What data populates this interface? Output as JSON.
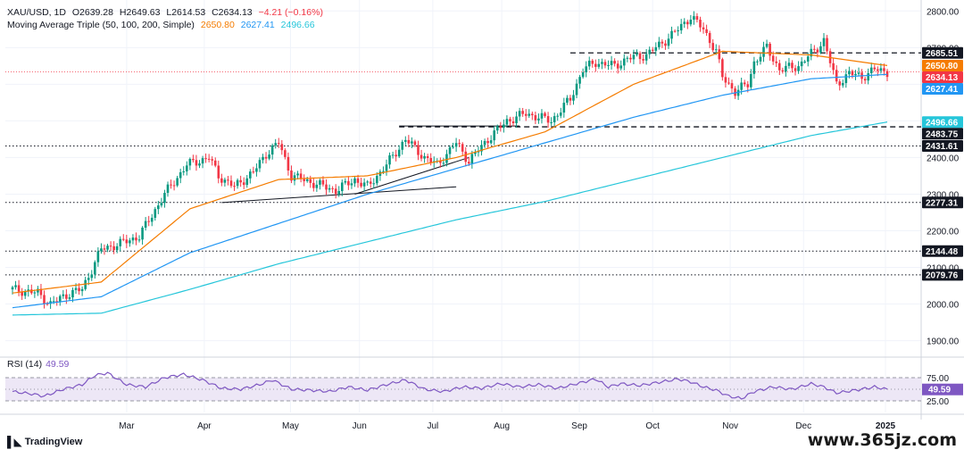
{
  "header": {
    "symbol": "XAU/USD, 1D",
    "open": "O2639.28",
    "high": "H2649.63",
    "low": "L2614.53",
    "close": "C2634.13",
    "change": "−4.21 (−0.16%)",
    "indicator_name": "Moving Average Triple (50, 100, 200, Simple)",
    "ma_values": [
      "2650.80",
      "2627.41",
      "2496.66"
    ]
  },
  "colors": {
    "up": "#089981",
    "down": "#f23645",
    "ma50": "#f57c00",
    "ma100": "#2196f3",
    "ma200": "#26c6da",
    "rsi": "#7e57c2",
    "rsi_band": "#ede7f6"
  },
  "rsi": {
    "label": "RSI (14)",
    "value": "49.59",
    "levels": [
      "75.00",
      "25.00"
    ]
  },
  "branding": {
    "logo": "TradingView",
    "watermark": "www.365jz.com"
  },
  "chart_data": {
    "type": "candlestick",
    "title": "XAU/USD, 1D",
    "x_labels": [
      "Mar",
      "Apr",
      "May",
      "Jun",
      "Jul",
      "Aug",
      "Sep",
      "Oct",
      "Nov",
      "Dec",
      "2025"
    ],
    "y_ticks": [
      1900,
      2000,
      2100,
      2200,
      2300,
      2400,
      2500,
      2600,
      2700,
      2800
    ],
    "ylim": [
      1860,
      2830
    ],
    "grid": true,
    "legend_position": "top-left",
    "horizontal_levels": [
      {
        "value": 2685.51,
        "style": "dashed",
        "label": "2685.51"
      },
      {
        "value": 2483.75,
        "style": "dashed",
        "label": "2483.75"
      },
      {
        "value": 2431.61,
        "style": "dotted",
        "label": "2431.61"
      },
      {
        "value": 2277.31,
        "style": "dotted",
        "label": "2277.31"
      },
      {
        "value": 2144.48,
        "style": "dotted",
        "label": "2144.48"
      },
      {
        "value": 2079.76,
        "style": "dotted",
        "label": "2079.76"
      }
    ],
    "price_badges": [
      {
        "value": 2685.51,
        "label": "2685.51",
        "kind": "level"
      },
      {
        "value": 2650.8,
        "label": "2650.80",
        "kind": "ma50"
      },
      {
        "value": 2634.13,
        "label": "2634.13",
        "kind": "close"
      },
      {
        "value": 2627.41,
        "label": "2627.41",
        "kind": "ma100"
      },
      {
        "value": 2496.66,
        "label": "2496.66",
        "kind": "ma200"
      },
      {
        "value": 2483.75,
        "label": "2483.75",
        "kind": "level"
      },
      {
        "value": 2431.61,
        "label": "2431.61",
        "kind": "level"
      },
      {
        "value": 2277.31,
        "label": "2277.31",
        "kind": "level"
      },
      {
        "value": 2144.48,
        "label": "2144.48",
        "kind": "level"
      },
      {
        "value": 2079.76,
        "label": "2079.76",
        "kind": "level"
      }
    ],
    "close_anchors": [
      [
        0,
        2040
      ],
      [
        8,
        2030
      ],
      [
        12,
        2000
      ],
      [
        18,
        2030
      ],
      [
        22,
        2040
      ],
      [
        28,
        2150
      ],
      [
        34,
        2165
      ],
      [
        40,
        2185
      ],
      [
        48,
        2300
      ],
      [
        55,
        2380
      ],
      [
        62,
        2400
      ],
      [
        65,
        2350
      ],
      [
        70,
        2320
      ],
      [
        76,
        2360
      ],
      [
        80,
        2410
      ],
      [
        84,
        2440
      ],
      [
        88,
        2350
      ],
      [
        95,
        2330
      ],
      [
        102,
        2310
      ],
      [
        108,
        2340
      ],
      [
        112,
        2320
      ],
      [
        118,
        2380
      ],
      [
        124,
        2450
      ],
      [
        130,
        2400
      ],
      [
        134,
        2380
      ],
      [
        140,
        2440
      ],
      [
        144,
        2390
      ],
      [
        150,
        2450
      ],
      [
        156,
        2500
      ],
      [
        162,
        2520
      ],
      [
        170,
        2500
      ],
      [
        176,
        2560
      ],
      [
        180,
        2640
      ],
      [
        184,
        2660
      ],
      [
        190,
        2650
      ],
      [
        194,
        2670
      ],
      [
        200,
        2680
      ],
      [
        206,
        2720
      ],
      [
        210,
        2750
      ],
      [
        214,
        2785
      ],
      [
        218,
        2750
      ],
      [
        222,
        2690
      ],
      [
        224,
        2620
      ],
      [
        228,
        2580
      ],
      [
        232,
        2600
      ],
      [
        234,
        2660
      ],
      [
        238,
        2700
      ],
      [
        242,
        2640
      ],
      [
        248,
        2650
      ],
      [
        254,
        2700
      ],
      [
        256,
        2720
      ],
      [
        260,
        2600
      ],
      [
        264,
        2630
      ],
      [
        268,
        2620
      ],
      [
        272,
        2640
      ],
      [
        276,
        2634
      ]
    ],
    "ma50": [
      [
        0,
        2030
      ],
      [
        28,
        2060
      ],
      [
        56,
        2260
      ],
      [
        84,
        2340
      ],
      [
        112,
        2350
      ],
      [
        140,
        2400
      ],
      [
        168,
        2470
      ],
      [
        196,
        2600
      ],
      [
        224,
        2690
      ],
      [
        252,
        2680
      ],
      [
        276,
        2651
      ]
    ],
    "ma100": [
      [
        0,
        1990
      ],
      [
        28,
        2020
      ],
      [
        56,
        2140
      ],
      [
        84,
        2220
      ],
      [
        112,
        2300
      ],
      [
        140,
        2370
      ],
      [
        168,
        2440
      ],
      [
        196,
        2510
      ],
      [
        224,
        2570
      ],
      [
        252,
        2615
      ],
      [
        276,
        2627
      ]
    ],
    "ma200": [
      [
        0,
        1970
      ],
      [
        28,
        1975
      ],
      [
        56,
        2040
      ],
      [
        84,
        2110
      ],
      [
        112,
        2170
      ],
      [
        140,
        2230
      ],
      [
        168,
        2280
      ],
      [
        196,
        2340
      ],
      [
        224,
        2400
      ],
      [
        252,
        2460
      ],
      [
        276,
        2497
      ]
    ],
    "rsi_series": [
      [
        0,
        45
      ],
      [
        6,
        40
      ],
      [
        10,
        35
      ],
      [
        16,
        50
      ],
      [
        22,
        60
      ],
      [
        26,
        80
      ],
      [
        30,
        85
      ],
      [
        36,
        60
      ],
      [
        42,
        55
      ],
      [
        48,
        75
      ],
      [
        54,
        82
      ],
      [
        60,
        70
      ],
      [
        66,
        52
      ],
      [
        72,
        50
      ],
      [
        78,
        60
      ],
      [
        82,
        70
      ],
      [
        88,
        50
      ],
      [
        94,
        48
      ],
      [
        100,
        45
      ],
      [
        106,
        55
      ],
      [
        112,
        48
      ],
      [
        118,
        60
      ],
      [
        124,
        70
      ],
      [
        130,
        50
      ],
      [
        136,
        45
      ],
      [
        142,
        55
      ],
      [
        148,
        52
      ],
      [
        154,
        62
      ],
      [
        160,
        55
      ],
      [
        166,
        60
      ],
      [
        172,
        52
      ],
      [
        178,
        62
      ],
      [
        184,
        72
      ],
      [
        188,
        55
      ],
      [
        192,
        62
      ],
      [
        198,
        58
      ],
      [
        204,
        65
      ],
      [
        210,
        72
      ],
      [
        214,
        66
      ],
      [
        218,
        55
      ],
      [
        222,
        48
      ],
      [
        226,
        35
      ],
      [
        230,
        30
      ],
      [
        234,
        45
      ],
      [
        240,
        55
      ],
      [
        246,
        50
      ],
      [
        252,
        62
      ],
      [
        256,
        55
      ],
      [
        260,
        42
      ],
      [
        266,
        48
      ],
      [
        272,
        55
      ],
      [
        276,
        49.59
      ]
    ]
  }
}
